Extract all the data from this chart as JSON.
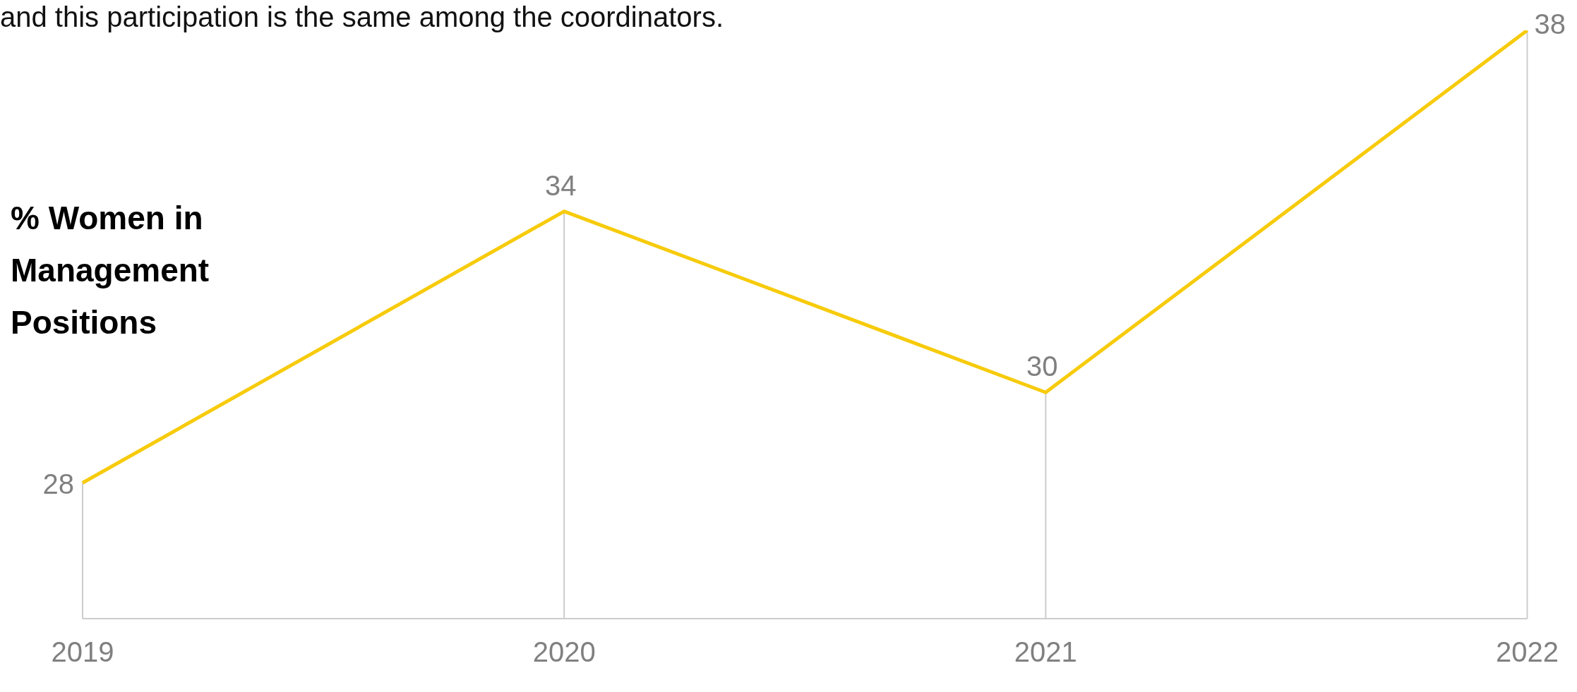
{
  "chart_data": {
    "type": "line",
    "ylabel": "% Women in Management Positions",
    "annotations": [
      "and this participation is the same among the coordinators."
    ],
    "categories": [
      "2019",
      "2020",
      "2021",
      "2022"
    ],
    "series": [
      {
        "color": "#f7cb0c",
        "values": [
          28,
          34,
          30,
          38
        ]
      }
    ],
    "ylim": [
      25,
      38
    ],
    "data_labels": true,
    "legend": false,
    "grid": false,
    "marker": "none"
  }
}
